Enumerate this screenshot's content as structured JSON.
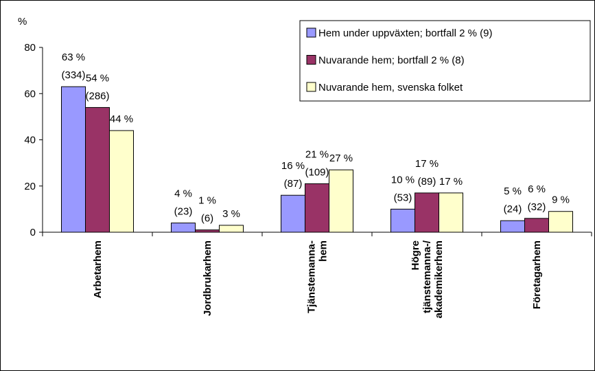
{
  "chart_data": {
    "type": "bar",
    "y_label": "%",
    "categories": [
      "Arbetarhem",
      "Jordbrukarhem",
      "Tjänstemanna-\nhem",
      "Högre\ntjänstemanna-/\nakademikerhem",
      "Företagarhem"
    ],
    "series": [
      {
        "name": "Hem under uppväxten; bortfall 2 % (9)",
        "color": "#9999ff",
        "values": [
          63,
          4,
          16,
          10,
          5
        ],
        "value_labels": [
          "63 %\n(334)",
          "4 %\n(23)",
          "16 %\n(87)",
          "10 %\n(53)",
          "5 %\n(24)"
        ]
      },
      {
        "name": "Nuvarande hem; bortfall 2 % (8)",
        "color": "#993366",
        "values": [
          54,
          1,
          21,
          17,
          6
        ],
        "value_labels": [
          "54 %\n(286)",
          "1 %\n(6)",
          "21 %\n(109)",
          "17 %\n(89)",
          "6 %\n(32)"
        ]
      },
      {
        "name": "Nuvarande hem, svenska folket",
        "color": "#ffffcc",
        "values": [
          44,
          3,
          27,
          17,
          9
        ],
        "value_labels": [
          "44 %",
          "3 %",
          "27 %",
          "17 %",
          "9 %"
        ]
      }
    ],
    "ylim": [
      0,
      80
    ],
    "yticks": [
      0,
      20,
      40,
      60,
      80
    ],
    "grid": false,
    "legend": "top-right"
  }
}
